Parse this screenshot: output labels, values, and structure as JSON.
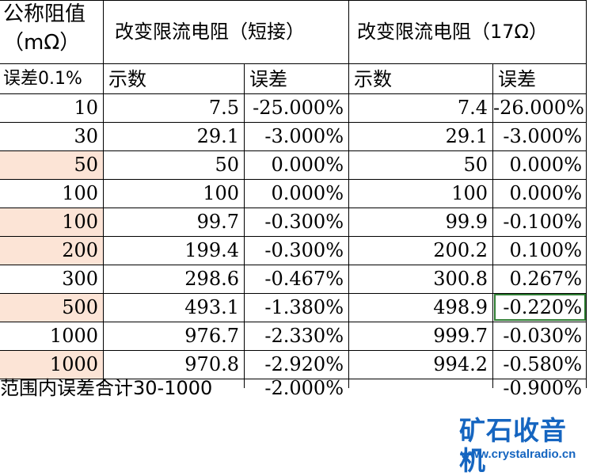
{
  "header": {
    "col1_line1": "公称阻值",
    "col1_line2": "（mΩ）",
    "col1_line3": "误差0.1%",
    "group1": "改变限流电阻（短接）",
    "group2": "改变限流电阻（17Ω）",
    "reading": "示数",
    "error": "误差"
  },
  "rows": [
    {
      "nominal": "10",
      "r1": "7.5",
      "e1": "-25.000%",
      "r2": "7.4",
      "e2": "-26.000%",
      "highlight": false
    },
    {
      "nominal": "30",
      "r1": "29.1",
      "e1": "-3.000%",
      "r2": "29.1",
      "e2": "-3.000%",
      "highlight": false
    },
    {
      "nominal": "50",
      "r1": "50",
      "e1": "0.000%",
      "r2": "50",
      "e2": "0.000%",
      "highlight": true
    },
    {
      "nominal": "100",
      "r1": "100",
      "e1": "0.000%",
      "r2": "100",
      "e2": "0.000%",
      "highlight": false
    },
    {
      "nominal": "100",
      "r1": "99.7",
      "e1": "-0.300%",
      "r2": "99.9",
      "e2": "-0.100%",
      "highlight": true
    },
    {
      "nominal": "200",
      "r1": "199.4",
      "e1": "-0.300%",
      "r2": "200.2",
      "e2": "0.100%",
      "highlight": true
    },
    {
      "nominal": "300",
      "r1": "298.6",
      "e1": "-0.467%",
      "r2": "300.8",
      "e2": "0.267%",
      "highlight": false
    },
    {
      "nominal": "500",
      "r1": "493.1",
      "e1": "-1.380%",
      "r2": "498.9",
      "e2": "-0.220%",
      "highlight": true
    },
    {
      "nominal": "1000",
      "r1": "976.7",
      "e1": "-2.330%",
      "r2": "999.7",
      "e2": "-0.030%",
      "highlight": false
    },
    {
      "nominal": "1000",
      "r1": "970.8",
      "e1": "-2.920%",
      "r2": "994.2",
      "e2": "-0.580%",
      "highlight": true
    }
  ],
  "footer": {
    "label": "范围内误差合计30-1000",
    "e1": "-2.000%",
    "e2": "-0.900%"
  },
  "watermark": {
    "brand": "矿石收音机",
    "url": "www.crystalradio.cn"
  },
  "colors": {
    "highlight": "#fce4d6",
    "selection": "#2e7d32",
    "brand": "#1565c0"
  }
}
